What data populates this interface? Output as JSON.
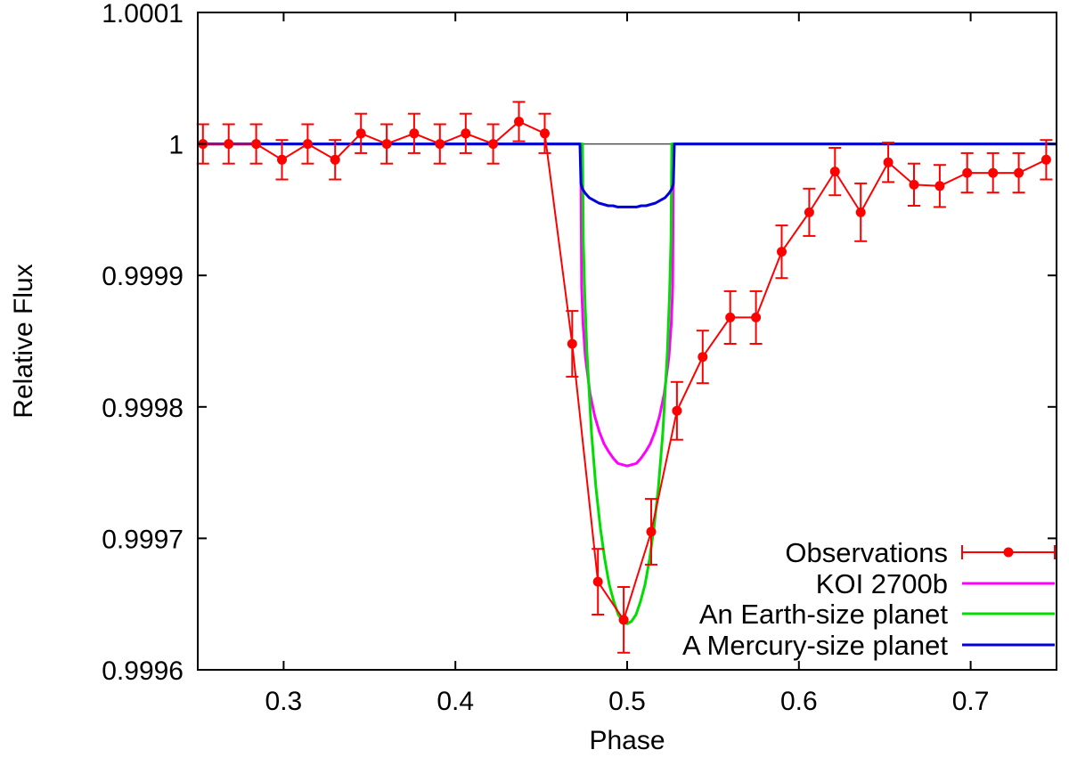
{
  "figure": {
    "background": "#ffffff",
    "axis_color": "#000000"
  },
  "chart_data": {
    "type": "line",
    "title": "",
    "xlabel": "Phase",
    "ylabel": "Relative Flux",
    "xlim": [
      0.25,
      0.75
    ],
    "ylim": [
      0.9996,
      1.0001
    ],
    "grid": false,
    "legend_position": "bottom-right",
    "xticks": {
      "values": [
        0.3,
        0.4,
        0.5,
        0.6,
        0.7
      ],
      "labels": [
        "0.3",
        "0.4",
        "0.5",
        "0.6",
        "0.7"
      ]
    },
    "yticks": {
      "values": [
        0.9996,
        0.9997,
        0.9998,
        0.9999,
        1.0,
        1.0001
      ],
      "labels": [
        "0.9996",
        "0.9997",
        "0.9998",
        "0.9999",
        "1",
        "1.0001"
      ]
    },
    "series": [
      {
        "name": "Observations",
        "z": 5,
        "color": "#ff0000",
        "width": 2,
        "style": "linespoints",
        "marker": "circle",
        "errorbars": true,
        "x": [
          0.253,
          0.268,
          0.284,
          0.299,
          0.314,
          0.33,
          0.345,
          0.36,
          0.376,
          0.391,
          0.406,
          0.422,
          0.437,
          0.452,
          0.468,
          0.483,
          0.498,
          0.514,
          0.529,
          0.544,
          0.56,
          0.575,
          0.59,
          0.606,
          0.621,
          0.636,
          0.652,
          0.667,
          0.682,
          0.698,
          0.713,
          0.728,
          0.744
        ],
        "y": [
          1.0,
          1.0,
          1.0,
          0.999988,
          1.0,
          0.999988,
          1.000008,
          1.0,
          1.000008,
          1.0,
          1.000008,
          1.0,
          1.000017,
          1.000008,
          0.999848,
          0.999667,
          0.999638,
          0.999705,
          0.999797,
          0.999838,
          0.999868,
          0.999868,
          0.999918,
          0.999948,
          0.999979,
          0.999948,
          0.999986,
          0.999969,
          0.999968,
          0.999978,
          0.999978,
          0.999978,
          0.999988
        ],
        "yerr": [
          1.5e-05,
          1.5e-05,
          1.5e-05,
          1.5e-05,
          1.5e-05,
          1.5e-05,
          1.5e-05,
          1.5e-05,
          1.5e-05,
          1.5e-05,
          1.5e-05,
          1.5e-05,
          1.5e-05,
          1.5e-05,
          2.5e-05,
          2.5e-05,
          2.5e-05,
          2.5e-05,
          2.2e-05,
          2e-05,
          2e-05,
          2e-05,
          2e-05,
          1.8e-05,
          1.8e-05,
          2.2e-05,
          1.5e-05,
          1.6e-05,
          1.6e-05,
          1.5e-05,
          1.5e-05,
          1.5e-05,
          1.5e-05
        ]
      },
      {
        "name": "KOI 2700b",
        "z": 2,
        "color": "#ff00ff",
        "width": 3,
        "style": "line",
        "x": [
          0.25,
          0.473,
          0.4735,
          0.4743,
          0.4757,
          0.4784,
          0.4811,
          0.4838,
          0.4865,
          0.4892,
          0.4919,
          0.4946,
          0.4973,
          0.5,
          0.5027,
          0.5054,
          0.5081,
          0.5108,
          0.5135,
          0.5162,
          0.5189,
          0.5216,
          0.5243,
          0.5257,
          0.5265,
          0.527,
          0.75
        ],
        "y": [
          1,
          1,
          0.999891,
          0.999863,
          0.999838,
          0.99981,
          0.999793,
          0.999781,
          0.999772,
          0.999766,
          0.999761,
          0.999757,
          0.999756,
          0.999755,
          0.999756,
          0.999757,
          0.999761,
          0.999766,
          0.999772,
          0.999781,
          0.999793,
          0.99981,
          0.999838,
          0.999863,
          0.999891,
          1,
          1
        ]
      },
      {
        "name": "An Earth-size planet",
        "z": 3,
        "color": "#00dd00",
        "width": 3,
        "style": "line",
        "x": [
          0.25,
          0.474,
          0.4745,
          0.4753,
          0.4766,
          0.4792,
          0.4818,
          0.4844,
          0.487,
          0.4896,
          0.4922,
          0.4948,
          0.4974,
          0.5,
          0.5026,
          0.5052,
          0.5078,
          0.5104,
          0.513,
          0.5156,
          0.5182,
          0.5208,
          0.5234,
          0.5247,
          0.5255,
          0.526,
          0.75
        ],
        "y": [
          1,
          1,
          0.999927,
          0.999886,
          0.999841,
          0.999781,
          0.999739,
          0.999708,
          0.999684,
          0.999665,
          0.999652,
          0.999642,
          0.999637,
          0.999635,
          0.999637,
          0.999642,
          0.999652,
          0.999665,
          0.999684,
          0.999708,
          0.999739,
          0.999781,
          0.999841,
          0.999886,
          0.999927,
          1,
          1
        ]
      },
      {
        "name": "A Mercury-size planet",
        "z": 4,
        "color": "#0000dd",
        "width": 3,
        "style": "line",
        "x": [
          0.25,
          0.4725,
          0.4731,
          0.4739,
          0.4753,
          0.478,
          0.4808,
          0.4835,
          0.4863,
          0.489,
          0.4918,
          0.4945,
          0.4973,
          0.5,
          0.5027,
          0.5055,
          0.5082,
          0.511,
          0.5137,
          0.5165,
          0.5192,
          0.522,
          0.5247,
          0.5261,
          0.5269,
          0.5275,
          0.75
        ],
        "y": [
          1,
          1,
          0.99997,
          0.999966,
          0.999963,
          0.999959,
          0.999957,
          0.999955,
          0.999954,
          0.999953,
          0.999953,
          0.999952,
          0.999952,
          0.999952,
          0.999952,
          0.999952,
          0.999953,
          0.999953,
          0.999954,
          0.999955,
          0.999957,
          0.999959,
          0.999963,
          0.999966,
          0.99997,
          1,
          1
        ]
      },
      {
        "name": "Flux baseline",
        "z": 1,
        "show_in_legend": false,
        "color": "#505050",
        "width": 1.5,
        "style": "line",
        "x": [
          0.25,
          0.75
        ],
        "y": [
          1,
          1
        ]
      }
    ]
  }
}
